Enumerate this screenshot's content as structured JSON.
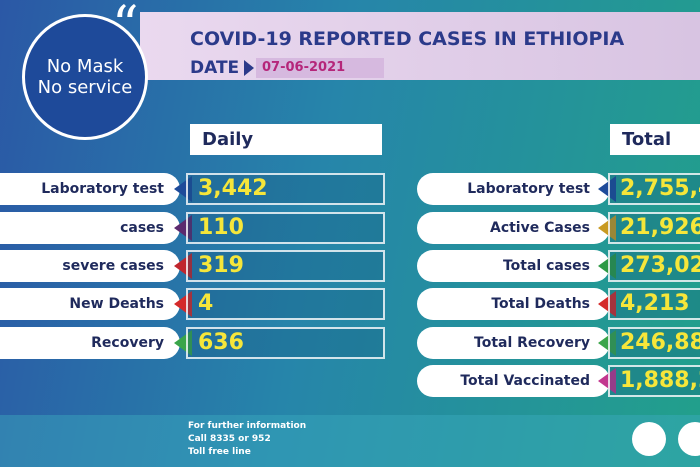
{
  "header": {
    "title": "COVID-19 REPORTED CASES IN ETHIOPIA",
    "date_label": "DATE",
    "date": "07-06-2021"
  },
  "badge": {
    "lines": [
      "No Mask",
      "No service"
    ]
  },
  "daily": {
    "heading": "Daily",
    "rows": [
      {
        "label": "Laboratory test",
        "value": "3,442",
        "color": "#1e4b9a"
      },
      {
        "label": "cases",
        "value": "110",
        "color": "#5c2a6e"
      },
      {
        "label": "severe cases",
        "value": "319",
        "color": "#c0262d"
      },
      {
        "label": "New Deaths",
        "value": "4",
        "color": "#d42a2a"
      },
      {
        "label": "Recovery",
        "value": "636",
        "color": "#3aa54a"
      }
    ]
  },
  "total": {
    "heading": "Total",
    "rows": [
      {
        "label": "Laboratory test",
        "value": "2,755,4",
        "color": "#1e4b9a"
      },
      {
        "label": "Active Cases",
        "value": "21,926",
        "color": "#c89a22"
      },
      {
        "label": "Total cases",
        "value": "273,02",
        "color": "#2e9a45"
      },
      {
        "label": "Total Deaths",
        "value": "4,213",
        "color": "#d42a2a"
      },
      {
        "label": "Total Recovery",
        "value": "246,88",
        "color": "#3aa54a"
      },
      {
        "label": "Total Vaccinated",
        "value": "1,888,2",
        "color": "#c2378f"
      }
    ]
  },
  "footer": {
    "lines": [
      "For further information",
      "Call 8335 or 952",
      "Toll free line"
    ]
  }
}
